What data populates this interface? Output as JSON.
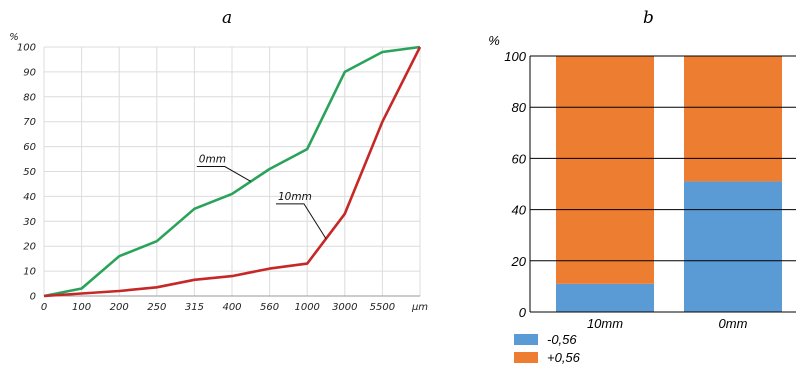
{
  "panel_a_label": "a",
  "panel_b_label": "b",
  "chart_data": [
    {
      "type": "line",
      "y_unit": "%",
      "x_unit": "μm",
      "x_ticks": [
        "0",
        "100",
        "200",
        "250",
        "315",
        "400",
        "560",
        "1000",
        "3000",
        "5500"
      ],
      "y_ticks": [
        "0",
        "10",
        "20",
        "30",
        "40",
        "50",
        "60",
        "70",
        "80",
        "90",
        "100"
      ],
      "ylim": [
        0,
        100
      ],
      "grid": true,
      "series": [
        {
          "name": "0mm",
          "color": "#2aa35a",
          "values": [
            0,
            3,
            16,
            22,
            35,
            41,
            51,
            59,
            90,
            98,
            100
          ]
        },
        {
          "name": "10mm",
          "color": "#c62828",
          "values": [
            0,
            1,
            2,
            3.5,
            6.5,
            8,
            11,
            13,
            33,
            70,
            100
          ]
        }
      ]
    },
    {
      "type": "bar",
      "stacked": true,
      "y_unit": "%",
      "categories": [
        "10mm",
        "0mm"
      ],
      "y_ticks": [
        "0",
        "20",
        "40",
        "60",
        "80",
        "100"
      ],
      "ylim": [
        0,
        100
      ],
      "series": [
        {
          "name": "-0,56",
          "color": "#5b9bd5",
          "values": [
            11,
            51
          ]
        },
        {
          "name": "+0,56",
          "color": "#ed7d31",
          "values": [
            89,
            49
          ]
        }
      ],
      "legend_position": "bottom-left"
    }
  ]
}
